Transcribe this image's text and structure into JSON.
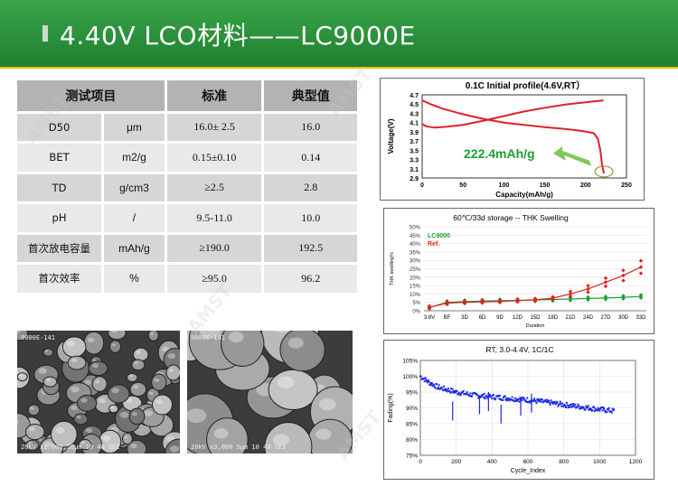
{
  "header": {
    "title": "4.40V LCO材料——LC9000E"
  },
  "watermark": "AMST",
  "spec_table": {
    "headers": [
      "测试项目",
      "",
      "标准",
      "典型值"
    ],
    "rows": [
      {
        "name": "D50",
        "unit": "μm",
        "standard": "16.0± 2.5",
        "typical": "16.0"
      },
      {
        "name": "BET",
        "unit": "m2/g",
        "standard": "0.15±0.10",
        "typical": "0.14"
      },
      {
        "name": "TD",
        "unit": "g/cm3",
        "standard": "≥2.5",
        "typical": "2.8"
      },
      {
        "name": "pH",
        "unit": "/",
        "standard": "9.5-11.0",
        "typical": "10.0"
      },
      {
        "name": "首次放电容量",
        "unit": "mAh/g",
        "standard": "≥190.0",
        "typical": "192.5"
      },
      {
        "name": "首次效率",
        "unit": "%",
        "standard": "≥95.0",
        "typical": "96.2"
      }
    ]
  },
  "sem_images": [
    {
      "top_label": "9000E-141",
      "bottom_label": "20kV x1,000 10μm 10 40 SEI"
    },
    {
      "top_label": "9000E-141",
      "bottom_label": "20kV x3,000 5μm 10 40 SEI"
    }
  ],
  "colors": {
    "lc9000": "#1aa032",
    "ref": "#e02020",
    "cycle": "#1a28e6",
    "profile": "#e0202a",
    "annotation": "#1aa032"
  },
  "chart_data": [
    {
      "type": "line",
      "title": "0.1C Initial profile(4.6V,RT）",
      "xlabel": "Capacity(mAh/g)",
      "ylabel": "Voltage(V)",
      "xlim": [
        0,
        250
      ],
      "ylim": [
        2.9,
        4.7
      ],
      "xticks": [
        0,
        50,
        100,
        150,
        200,
        250
      ],
      "yticks": [
        2.9,
        3.1,
        3.3,
        3.5,
        3.7,
        3.9,
        4.1,
        4.3,
        4.5,
        4.7
      ],
      "annotation": "222.4mAh/g",
      "series": [
        {
          "values_x": [
            0,
            5,
            15,
            30,
            50,
            75,
            100,
            125,
            150,
            175,
            195,
            210,
            222
          ],
          "values_y": [
            4.07,
            4.02,
            3.99,
            4.01,
            4.05,
            4.14,
            4.24,
            4.34,
            4.42,
            4.49,
            4.53,
            4.56,
            4.58
          ]
        },
        {
          "values_x": [
            0,
            10,
            25,
            50,
            75,
            100,
            125,
            150,
            175,
            195,
            210,
            215,
            218,
            220,
            222.4
          ],
          "values_y": [
            4.58,
            4.5,
            4.4,
            4.28,
            4.18,
            4.1,
            4.05,
            4.0,
            3.96,
            3.92,
            3.87,
            3.75,
            3.5,
            3.2,
            3.0
          ]
        }
      ]
    },
    {
      "type": "scatter",
      "title": "60℃/33d storage -- THK Swelling",
      "xlabel": "Duration",
      "ylabel": "THK swelling%",
      "ylim": [
        0,
        50
      ],
      "yticks": [
        "0%",
        "5%",
        "10%",
        "15%",
        "20%",
        "25%",
        "30%",
        "35%",
        "40%",
        "45%",
        "50%"
      ],
      "categories": [
        "3.8V",
        "BF",
        "3D",
        "6D",
        "9D",
        "12D",
        "15D",
        "18D",
        "21D",
        "24D",
        "27D",
        "30D",
        "33D"
      ],
      "series": [
        {
          "name": "LC9000",
          "values": [
            2,
            5,
            5.5,
            5.8,
            6,
            6.2,
            6.4,
            6.7,
            7,
            7.3,
            7.6,
            8,
            8.5
          ]
        },
        {
          "name": "Ref.",
          "values": [
            2,
            4.5,
            5,
            5.3,
            5.6,
            6,
            6.5,
            7.5,
            10,
            13,
            17,
            21,
            26
          ]
        }
      ]
    },
    {
      "type": "scatter",
      "title": "RT, 3.0-4.4V, 1C/1C",
      "xlabel": "Cycle_Index",
      "ylabel": "Fading(%)",
      "xlim": [
        0,
        1200
      ],
      "ylim": [
        75,
        105
      ],
      "xticks": [
        0,
        200,
        400,
        600,
        800,
        1000,
        1200
      ],
      "yticks": [
        "75%",
        "80%",
        "85%",
        "90%",
        "95%",
        "100%",
        "105%"
      ],
      "series": [
        {
          "x": [
            0,
            50,
            100,
            200,
            300,
            400,
            500,
            600,
            700,
            800,
            900,
            1000,
            1080
          ],
          "y": [
            100,
            98,
            96.5,
            95,
            94,
            93.5,
            93,
            92.5,
            91.8,
            91,
            90.3,
            89.5,
            89
          ]
        }
      ]
    }
  ]
}
